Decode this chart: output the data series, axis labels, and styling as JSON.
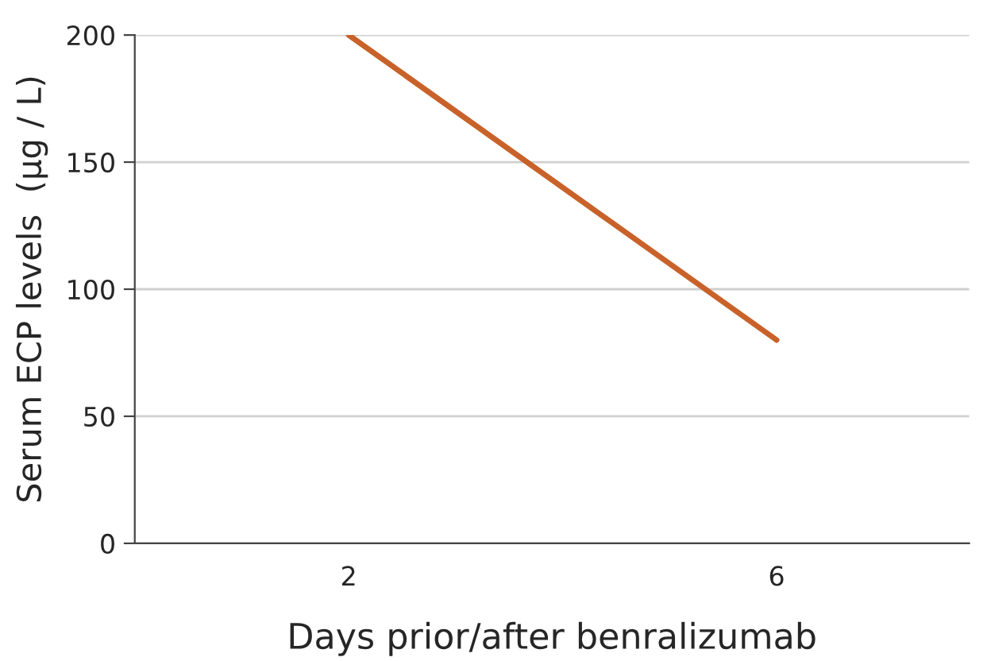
{
  "chart_data": {
    "type": "line",
    "xlabel": "Days prior/after benralizumab",
    "ylabel": "Serum ECP levels  (µg / L)",
    "x": [
      2,
      6
    ],
    "series": [
      {
        "color": "#c8622a",
        "values": [
          200,
          80
        ]
      }
    ],
    "xlim": [
      0,
      7.8
    ],
    "xticks": [
      2,
      6
    ],
    "ylim": [
      0,
      200
    ],
    "yticks": [
      0,
      50,
      100,
      150,
      200
    ],
    "grid": "y",
    "marker": "none",
    "line_style": "solid"
  }
}
